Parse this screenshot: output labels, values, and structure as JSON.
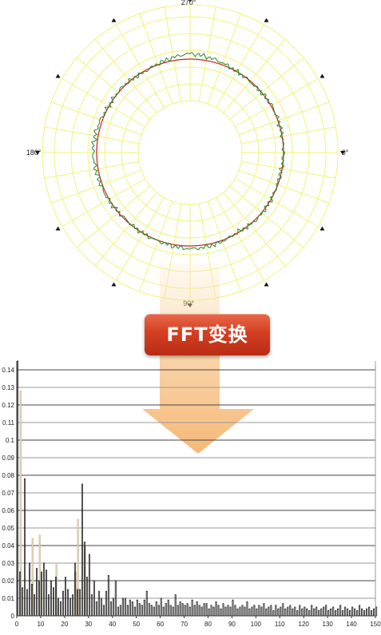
{
  "polar_chart": {
    "angle_labels": [
      "270°",
      "0°",
      "90°",
      "180°"
    ],
    "grid_color": "#f2f27a",
    "measured_color": "#1f8a2c",
    "fitted_color": "#d42020"
  },
  "transform_label": "FFT变换",
  "chart_data": [
    {
      "type": "line",
      "polar": true,
      "series": [
        {
          "values_description_only": false,
          "theta_deg": [
            0,
            15,
            30,
            45,
            60,
            75,
            90,
            105,
            120,
            135,
            150,
            165,
            180,
            195,
            210,
            225,
            240,
            255,
            270,
            285,
            300,
            315,
            330,
            345
          ],
          "r": [
            1.0,
            0.99,
            1.0,
            1.01,
            0.99,
            1.02,
            1.03,
            1.01,
            1.0,
            0.99,
            1.01,
            1.02,
            1.04,
            1.03,
            1.0,
            1.01,
            0.99,
            1.02,
            1.06,
            1.03,
            1.0,
            0.99,
            1.01,
            1.0
          ]
        }
      ]
    },
    {
      "type": "bar",
      "x_ticks": [
        0,
        10,
        20,
        30,
        40,
        50,
        60,
        70,
        80,
        90,
        100,
        110,
        120,
        130,
        140,
        150
      ],
      "y_ticks": [
        "0",
        "0.01",
        "0.02",
        "0.03",
        "0.04",
        "0.05",
        "0.06",
        "0.07",
        "0.08",
        "0.09",
        "0.1",
        "0.11",
        "0.12",
        "0.13",
        "0.14"
      ],
      "xlim": [
        0,
        150
      ],
      "ylim": [
        0,
        0.145
      ],
      "series": [
        {
          "color": "#222222",
          "x": [
            0,
            1,
            2,
            3,
            4,
            5,
            6,
            7,
            8,
            9,
            10,
            11,
            12,
            13,
            14,
            15,
            16,
            17,
            18,
            19,
            20,
            21,
            22,
            23,
            24,
            25,
            26,
            27,
            28,
            29,
            30,
            31,
            32,
            33,
            34,
            35,
            36,
            37,
            38,
            39,
            40,
            41,
            42,
            43,
            44,
            45,
            46,
            47,
            48,
            49,
            50,
            51,
            52,
            53,
            54,
            55,
            56,
            57,
            58,
            59,
            60,
            61,
            62,
            63,
            64,
            65,
            66,
            67,
            68,
            69,
            70,
            71,
            72,
            73,
            74,
            75,
            76,
            77,
            78,
            79,
            80,
            81,
            82,
            83,
            84,
            85,
            86,
            87,
            88,
            89,
            90,
            91,
            92,
            93,
            94,
            95,
            96,
            97,
            98,
            99,
            100,
            101,
            102,
            103,
            104,
            105,
            106,
            107,
            108,
            109,
            110,
            111,
            112,
            113,
            114,
            115,
            116,
            117,
            118,
            119,
            120,
            121,
            122,
            123,
            124,
            125,
            126,
            127,
            128,
            129,
            130,
            131,
            132,
            133,
            134,
            135,
            136,
            137,
            138,
            139,
            140,
            141,
            142,
            143,
            144,
            145,
            146,
            147,
            148,
            149,
            150
          ],
          "values": [
            0.145,
            0.025,
            0.016,
            0.078,
            0.015,
            0.03,
            0.018,
            0.012,
            0.027,
            0.02,
            0.025,
            0.03,
            0.026,
            0.012,
            0.02,
            0.016,
            0.022,
            0.01,
            0.008,
            0.014,
            0.022,
            0.015,
            0.01,
            0.012,
            0.03,
            0.015,
            0.015,
            0.075,
            0.042,
            0.022,
            0.035,
            0.012,
            0.02,
            0.008,
            0.014,
            0.01,
            0.006,
            0.014,
            0.023,
            0.008,
            0.01,
            0.02,
            0.005,
            0.006,
            0.01,
            0.01,
            0.006,
            0.009,
            0.008,
            0.005,
            0.009,
            0.007,
            0.006,
            0.009,
            0.014,
            0.007,
            0.006,
            0.005,
            0.008,
            0.006,
            0.01,
            0.005,
            0.007,
            0.009,
            0.006,
            0.005,
            0.012,
            0.006,
            0.008,
            0.007,
            0.006,
            0.007,
            0.005,
            0.009,
            0.006,
            0.008,
            0.006,
            0.005,
            0.007,
            0.007,
            0.004,
            0.006,
            0.005,
            0.008,
            0.006,
            0.004,
            0.007,
            0.005,
            0.006,
            0.005,
            0.009,
            0.006,
            0.004,
            0.005,
            0.006,
            0.005,
            0.008,
            0.004,
            0.005,
            0.006,
            0.004,
            0.006,
            0.005,
            0.007,
            0.004,
            0.005,
            0.006,
            0.003,
            0.006,
            0.004,
            0.005,
            0.007,
            0.004,
            0.005,
            0.006,
            0.004,
            0.005,
            0.003,
            0.006,
            0.004,
            0.005,
            0.004,
            0.003,
            0.006,
            0.004,
            0.005,
            0.003,
            0.004,
            0.005,
            0.006,
            0.003,
            0.004,
            0.005,
            0.003,
            0.004,
            0.006,
            0.003,
            0.005,
            0.004,
            0.003,
            0.005,
            0.004,
            0.003,
            0.006,
            0.004,
            0.003,
            0.004,
            0.005,
            0.003,
            0.004,
            0.005
          ]
        },
        {
          "color": "#e9dcc4",
          "x": [
            1,
            6,
            9,
            16,
            24,
            25,
            28
          ],
          "values": [
            0.128,
            0.044,
            0.046,
            0.03,
            0.025,
            0.055,
            0.04
          ]
        }
      ]
    }
  ]
}
